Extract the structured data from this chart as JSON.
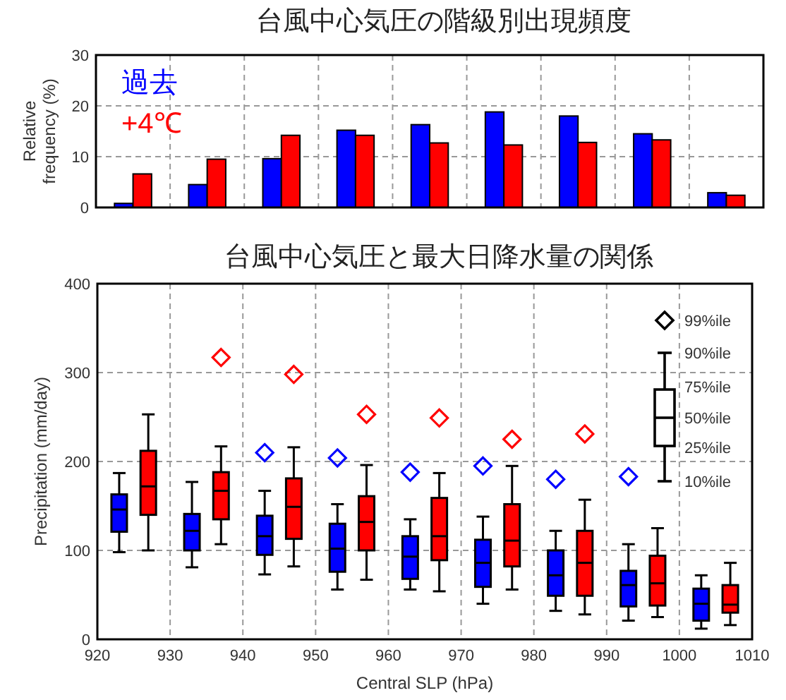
{
  "chart_data": [
    {
      "type": "bar",
      "title": "台風中心気圧の階級別出現頻度",
      "ylabel": "Relative\nfrequency (%)",
      "categories": [
        null,
        null,
        null,
        null,
        null,
        null,
        null,
        null,
        null
      ],
      "series": [
        {
          "name": "過去",
          "color": "#0000ff",
          "values": [
            0.8,
            4.5,
            9.6,
            15.2,
            16.3,
            18.8,
            18,
            14.5,
            2.9
          ]
        },
        {
          "name": "+4℃",
          "color": "#ff0000",
          "values": [
            6.6,
            9.5,
            14.2,
            14.2,
            12.7,
            12.3,
            12.8,
            13.3,
            2.4
          ]
        }
      ],
      "ylim": [
        0,
        30
      ],
      "yticks": [
        0,
        10,
        20,
        30
      ],
      "grid": true,
      "legend": "top left",
      "tick_labels": "y"
    },
    {
      "type": "box",
      "title": "台風中心気圧と最大日降水量の関係",
      "xlabel": "Central SLP (hPa)",
      "ylabel": "Precipitation (mm/day)",
      "series": [
        {
          "type": "box",
          "color": "#0000ff",
          "x": [
            923,
            933,
            943,
            953,
            963,
            973,
            983,
            993,
            1003
          ],
          "boxes": [
            {
              "low": 98,
              "q1": 121,
              "median": 146,
              "q3": 163,
              "high": 187
            },
            {
              "low": 81,
              "q1": 100,
              "median": 122,
              "q3": 141,
              "high": 177
            },
            {
              "low": 73,
              "q1": 95,
              "median": 116,
              "q3": 139,
              "high": 167
            },
            {
              "low": 56,
              "q1": 76,
              "median": 102,
              "q3": 130,
              "high": 152
            },
            {
              "low": 56,
              "q1": 68,
              "median": 93,
              "q3": 116,
              "high": 135
            },
            {
              "low": 40,
              "q1": 59,
              "median": 86,
              "q3": 112,
              "high": 138
            },
            {
              "low": 32,
              "q1": 49,
              "median": 72,
              "q3": 100,
              "high": 122
            },
            {
              "low": 21,
              "q1": 37,
              "median": 61,
              "q3": 77,
              "high": 107
            },
            {
              "low": 12,
              "q1": 21,
              "median": 40,
              "q3": 57,
              "high": 72
            }
          ]
        },
        {
          "type": "box",
          "color": "#ff0000",
          "x": [
            927,
            937,
            947,
            957,
            967,
            977,
            987,
            997,
            1007
          ],
          "boxes": [
            {
              "low": 100,
              "q1": 140,
              "median": 172,
              "q3": 212,
              "high": 253
            },
            {
              "low": 107,
              "q1": 135,
              "median": 167,
              "q3": 188,
              "high": 217
            },
            {
              "low": 82,
              "q1": 113,
              "median": 149,
              "q3": 181,
              "high": 216
            },
            {
              "low": 67,
              "q1": 100,
              "median": 132,
              "q3": 161,
              "high": 196
            },
            {
              "low": 54,
              "q1": 89,
              "median": 116,
              "q3": 159,
              "high": 187
            },
            {
              "low": 56,
              "q1": 82,
              "median": 111,
              "q3": 152,
              "high": 195
            },
            {
              "low": 28,
              "q1": 49,
              "median": 86,
              "q3": 122,
              "high": 157
            },
            {
              "low": 25,
              "q1": 38,
              "median": 63,
              "q3": 94,
              "high": 125
            },
            {
              "low": 16,
              "q1": 30,
              "median": 39,
              "q3": 61,
              "high": 86
            }
          ]
        },
        {
          "type": "scatter",
          "color": "#0000ff",
          "marker": "diamond",
          "x": [
            943,
            953,
            963,
            973,
            983,
            993
          ],
          "values": [
            210,
            204,
            188,
            195,
            180,
            183
          ]
        },
        {
          "type": "scatter",
          "color": "#ff0000",
          "marker": "diamond",
          "x": [
            937,
            947,
            957,
            967,
            977,
            987
          ],
          "values": [
            317,
            298,
            253,
            249,
            225,
            231
          ]
        }
      ],
      "xlim": [
        920,
        1010
      ],
      "xticks": [
        920,
        930,
        940,
        950,
        960,
        970,
        980,
        990,
        1000,
        1010
      ],
      "ylim": [
        0,
        400
      ],
      "yticks": [
        0,
        100,
        200,
        300,
        400
      ],
      "grid": true,
      "legend": false,
      "annotations": [
        "99%ile",
        "90%ile",
        "75%ile",
        "50%ile",
        "25%ile",
        "10%ile"
      ]
    }
  ]
}
